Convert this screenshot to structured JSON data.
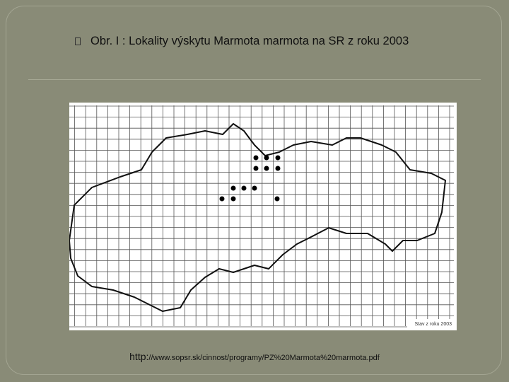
{
  "slide": {
    "title": "Obr. I : Lokality výskytu Marmota marmota na SR z roku 2003",
    "map_stamp": "Stav z roku 2003",
    "source_scheme": "http:",
    "source_path": "//www.sopsr.sk/cinnost/programy/PZ%20Marmota%20marmota.pdf"
  }
}
